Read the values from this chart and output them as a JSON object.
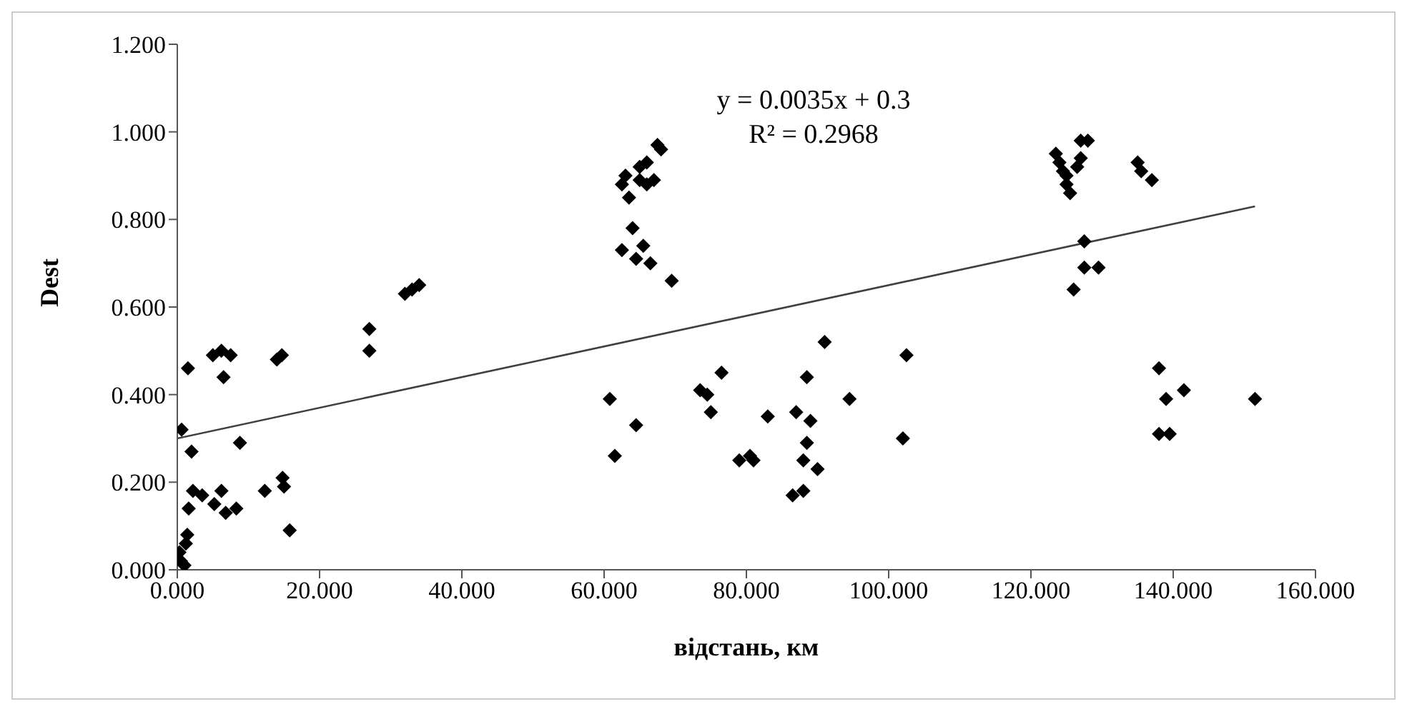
{
  "chart_data": {
    "type": "scatter",
    "xlabel": "відстань, км",
    "ylabel": "Dest",
    "annotations": [
      "y = 0.0035x + 0.3",
      "R² = 0.2968"
    ],
    "xlim": [
      0,
      160
    ],
    "xticks": [
      {
        "value": 0,
        "label": "0.000"
      },
      {
        "value": 20,
        "label": "20.000"
      },
      {
        "value": 40,
        "label": "40.000"
      },
      {
        "value": 60,
        "label": "60.000"
      },
      {
        "value": 80,
        "label": "80.000"
      },
      {
        "value": 100,
        "label": "100.000"
      },
      {
        "value": 120,
        "label": "120.000"
      },
      {
        "value": 140,
        "label": "140.000"
      },
      {
        "value": 160,
        "label": "160.000"
      }
    ],
    "ylim": [
      0,
      1.2
    ],
    "yticks": [
      {
        "value": 0,
        "label": "0.000"
      },
      {
        "value": 0.2,
        "label": "0.200"
      },
      {
        "value": 0.4,
        "label": "0.400"
      },
      {
        "value": 0.6,
        "label": "0.600"
      },
      {
        "value": 0.8,
        "label": "0.800"
      },
      {
        "value": 1,
        "label": "1.000"
      },
      {
        "value": 1.2,
        "label": "1.200"
      }
    ],
    "grid": false,
    "marker": "diamond",
    "series": [
      {
        "color": "#000000",
        "x": [
          0.3,
          0.5,
          0.6,
          1,
          1.2,
          1.4,
          1.5,
          1.6,
          2,
          2.2,
          3.5,
          5,
          5.2,
          6.2,
          6.2,
          6.5,
          6.8,
          7.5,
          8.3,
          8.8,
          12.3,
          14,
          14.7,
          14.8,
          15,
          15.8,
          27,
          27,
          32,
          33,
          34,
          60.8,
          61.5,
          62.5,
          62.5,
          63,
          63.5,
          64,
          64.5,
          64.5,
          65,
          65,
          65.5,
          66,
          66,
          66.5,
          67,
          67.5,
          68,
          69.5,
          73.5,
          74.5,
          75,
          76.5,
          79,
          80.5,
          81,
          83,
          86.5,
          87,
          88,
          88,
          88.5,
          88.5,
          89,
          90,
          91,
          94.5,
          102,
          102.5,
          123.5,
          124,
          124.5,
          125,
          125.5,
          125,
          126,
          126.5,
          127,
          127,
          127.5,
          127.5,
          128,
          129.5,
          135,
          135.5,
          137,
          138,
          138,
          139,
          139.5,
          141.5,
          151.5
        ],
        "values": [
          0.04,
          0.02,
          0.32,
          0.01,
          0.06,
          0.08,
          0.46,
          0.14,
          0.27,
          0.18,
          0.17,
          0.49,
          0.15,
          0.5,
          0.18,
          0.44,
          0.13,
          0.49,
          0.14,
          0.29,
          0.18,
          0.48,
          0.49,
          0.21,
          0.19,
          0.09,
          0.55,
          0.5,
          0.63,
          0.64,
          0.65,
          0.39,
          0.26,
          0.88,
          0.73,
          0.9,
          0.85,
          0.78,
          0.71,
          0.33,
          0.92,
          0.89,
          0.74,
          0.93,
          0.88,
          0.7,
          0.89,
          0.97,
          0.96,
          0.66,
          0.41,
          0.4,
          0.36,
          0.45,
          0.25,
          0.26,
          0.25,
          0.35,
          0.17,
          0.36,
          0.18,
          0.25,
          0.44,
          0.29,
          0.34,
          0.23,
          0.52,
          0.39,
          0.3,
          0.49,
          0.95,
          0.93,
          0.91,
          0.88,
          0.86,
          0.9,
          0.64,
          0.92,
          0.98,
          0.94,
          0.75,
          0.69,
          0.98,
          0.69,
          0.93,
          0.91,
          0.89,
          0.46,
          0.31,
          0.39,
          0.31,
          0.41,
          0.39
        ]
      },
      {
        "type": "line",
        "color": "#404040",
        "x": [
          0,
          151.5
        ],
        "values": [
          0.3,
          0.83
        ],
        "line_style": "solid",
        "marker": "none"
      }
    ]
  }
}
